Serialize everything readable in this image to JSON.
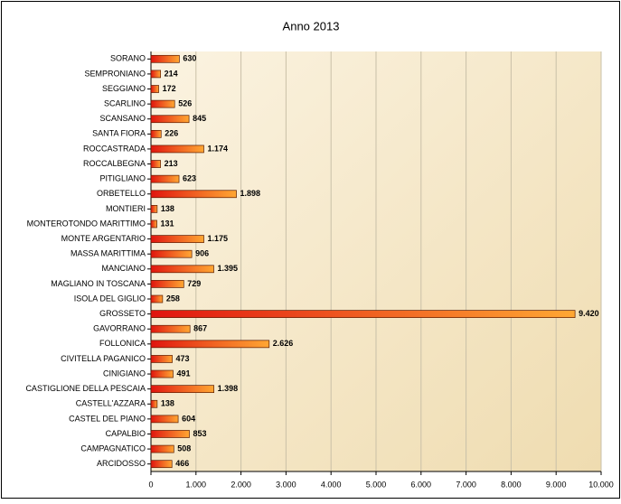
{
  "chart_data": {
    "type": "barh",
    "title": "Anno 2013",
    "categories": [
      "ARCIDOSSO",
      "CAMPAGNATICO",
      "CAPALBIO",
      "CASTEL DEL PIANO",
      "CASTELL'AZZARA",
      "CASTIGLIONE DELLA PESCAIA",
      "CINIGIANO",
      "CIVITELLA PAGANICO",
      "FOLLONICA",
      "GAVORRANO",
      "GROSSETO",
      "ISOLA DEL GIGLIO",
      "MAGLIANO IN TOSCANA",
      "MANCIANO",
      "MASSA MARITTIMA",
      "MONTE ARGENTARIO",
      "MONTEROTONDO MARITTIMO",
      "MONTIERI",
      "ORBETELLO",
      "PITIGLIANO",
      "ROCCALBEGNA",
      "ROCCASTRADA",
      "SANTA FIORA",
      "SCANSANO",
      "SCARLINO",
      "SEGGIANO",
      "SEMPRONIANO",
      "SORANO"
    ],
    "values": [
      466,
      508,
      853,
      604,
      138,
      1398,
      491,
      473,
      2626,
      867,
      9420,
      258,
      729,
      1395,
      906,
      1175,
      131,
      138,
      1898,
      623,
      213,
      1174,
      226,
      845,
      526,
      172,
      214,
      630
    ],
    "value_labels": [
      "466",
      "508",
      "853",
      "604",
      "138",
      "1.398",
      "491",
      "473",
      "2.626",
      "867",
      "9.420",
      "258",
      "729",
      "1.395",
      "906",
      "1.175",
      "131",
      "138",
      "1.898",
      "623",
      "213",
      "1.174",
      "226",
      "845",
      "526",
      "172",
      "214",
      "630"
    ],
    "colors": [
      "#e0150f",
      "#ffa733"
    ],
    "xlim": [
      0,
      10000
    ],
    "xticks": [
      0,
      {
        "value": 1000,
        "label": "1.000"
      },
      {
        "value": 2000,
        "label": "2.000"
      },
      {
        "value": 3000,
        "label": "3.000"
      },
      {
        "value": 4000,
        "label": "4.000"
      },
      {
        "value": 5000,
        "label": "5.000"
      },
      {
        "value": 6000,
        "label": "6.000"
      },
      {
        "value": 7000,
        "label": "7.000"
      },
      {
        "value": 8000,
        "label": "8.000"
      },
      {
        "value": 9000,
        "label": "9.000"
      },
      {
        "value": 10000,
        "label": "10.000"
      }
    ],
    "grid": true
  }
}
